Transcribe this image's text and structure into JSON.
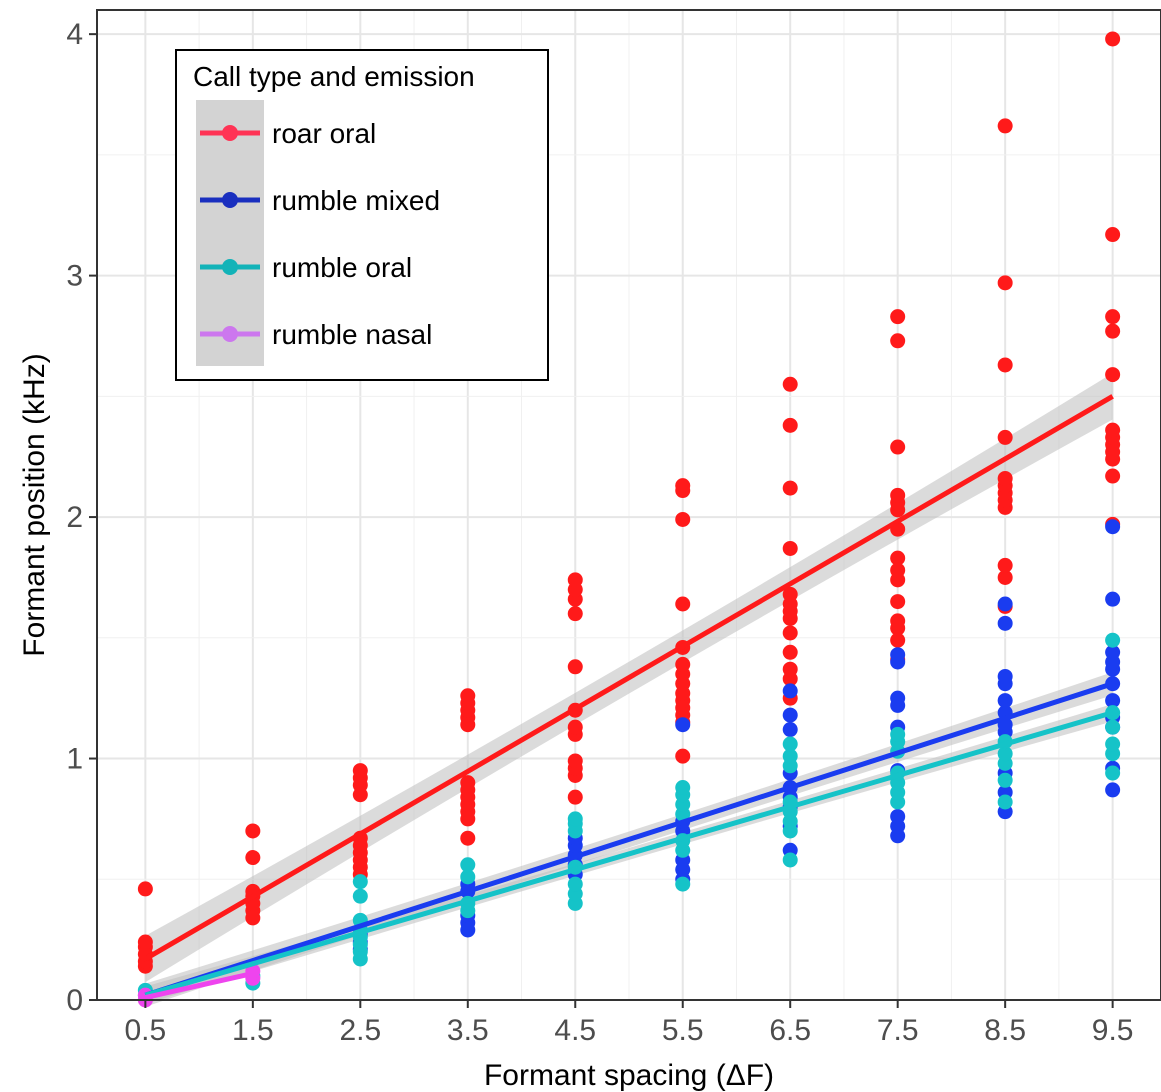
{
  "chart_data": {
    "type": "scatter",
    "title": "",
    "xlabel": "Formant spacing (ΔF)",
    "ylabel": "Formant position (kHz)",
    "xlim": [
      0.05,
      9.95
    ],
    "ylim": [
      0,
      4.1
    ],
    "x_ticks": [
      "0.5",
      "1.5",
      "2.5",
      "3.5",
      "4.5",
      "5.5",
      "6.5",
      "7.5",
      "8.5",
      "9.5"
    ],
    "y_ticks": [
      "0",
      "1",
      "2",
      "3",
      "4"
    ],
    "grid": true,
    "legend": {
      "title": "Call type and emission",
      "position": "top-left"
    },
    "series": [
      {
        "name": "roar oral",
        "color": "#ff1a1a",
        "legend_color": "#ff3355",
        "points": [
          [
            0.5,
            0.14
          ],
          [
            0.5,
            0.16
          ],
          [
            0.5,
            0.19
          ],
          [
            0.5,
            0.22
          ],
          [
            0.5,
            0.24
          ],
          [
            0.5,
            0.46
          ],
          [
            1.5,
            0.34
          ],
          [
            1.5,
            0.37
          ],
          [
            1.5,
            0.4
          ],
          [
            1.5,
            0.43
          ],
          [
            1.5,
            0.45
          ],
          [
            1.5,
            0.59
          ],
          [
            1.5,
            0.7
          ],
          [
            2.5,
            0.52
          ],
          [
            2.5,
            0.55
          ],
          [
            2.5,
            0.58
          ],
          [
            2.5,
            0.61
          ],
          [
            2.5,
            0.64
          ],
          [
            2.5,
            0.67
          ],
          [
            2.5,
            0.85
          ],
          [
            2.5,
            0.89
          ],
          [
            2.5,
            0.92
          ],
          [
            2.5,
            0.95
          ],
          [
            3.5,
            0.67
          ],
          [
            3.5,
            0.75
          ],
          [
            3.5,
            0.78
          ],
          [
            3.5,
            0.81
          ],
          [
            3.5,
            0.84
          ],
          [
            3.5,
            0.87
          ],
          [
            3.5,
            0.9
          ],
          [
            3.5,
            1.14
          ],
          [
            3.5,
            1.17
          ],
          [
            3.5,
            1.2
          ],
          [
            3.5,
            1.23
          ],
          [
            3.5,
            1.26
          ],
          [
            4.5,
            0.84
          ],
          [
            4.5,
            0.93
          ],
          [
            4.5,
            0.96
          ],
          [
            4.5,
            0.99
          ],
          [
            4.5,
            1.1
          ],
          [
            4.5,
            1.13
          ],
          [
            4.5,
            1.2
          ],
          [
            4.5,
            1.38
          ],
          [
            4.5,
            1.6
          ],
          [
            4.5,
            1.66
          ],
          [
            4.5,
            1.7
          ],
          [
            4.5,
            1.74
          ],
          [
            5.5,
            1.01
          ],
          [
            5.5,
            1.15
          ],
          [
            5.5,
            1.18
          ],
          [
            5.5,
            1.21
          ],
          [
            5.5,
            1.24
          ],
          [
            5.5,
            1.27
          ],
          [
            5.5,
            1.31
          ],
          [
            5.5,
            1.35
          ],
          [
            5.5,
            1.39
          ],
          [
            5.5,
            1.46
          ],
          [
            5.5,
            1.64
          ],
          [
            5.5,
            1.99
          ],
          [
            5.5,
            2.11
          ],
          [
            5.5,
            2.13
          ],
          [
            6.5,
            1.25
          ],
          [
            6.5,
            1.33
          ],
          [
            6.5,
            1.37
          ],
          [
            6.5,
            1.44
          ],
          [
            6.5,
            1.52
          ],
          [
            6.5,
            1.58
          ],
          [
            6.5,
            1.61
          ],
          [
            6.5,
            1.64
          ],
          [
            6.5,
            1.68
          ],
          [
            6.5,
            1.87
          ],
          [
            6.5,
            2.12
          ],
          [
            6.5,
            2.38
          ],
          [
            6.5,
            2.55
          ],
          [
            7.5,
            1.41
          ],
          [
            7.5,
            1.49
          ],
          [
            7.5,
            1.54
          ],
          [
            7.5,
            1.57
          ],
          [
            7.5,
            1.65
          ],
          [
            7.5,
            1.74
          ],
          [
            7.5,
            1.78
          ],
          [
            7.5,
            1.83
          ],
          [
            7.5,
            1.95
          ],
          [
            7.5,
            2.03
          ],
          [
            7.5,
            2.06
          ],
          [
            7.5,
            2.09
          ],
          [
            7.5,
            2.29
          ],
          [
            7.5,
            2.73
          ],
          [
            7.5,
            2.83
          ],
          [
            8.5,
            1.63
          ],
          [
            8.5,
            1.75
          ],
          [
            8.5,
            1.8
          ],
          [
            8.5,
            2.04
          ],
          [
            8.5,
            2.07
          ],
          [
            8.5,
            2.1
          ],
          [
            8.5,
            2.13
          ],
          [
            8.5,
            2.16
          ],
          [
            8.5,
            2.33
          ],
          [
            8.5,
            2.63
          ],
          [
            8.5,
            2.97
          ],
          [
            8.5,
            3.62
          ],
          [
            9.5,
            1.97
          ],
          [
            9.5,
            2.17
          ],
          [
            9.5,
            2.24
          ],
          [
            9.5,
            2.27
          ],
          [
            9.5,
            2.3
          ],
          [
            9.5,
            2.33
          ],
          [
            9.5,
            2.36
          ],
          [
            9.5,
            2.59
          ],
          [
            9.5,
            2.77
          ],
          [
            9.5,
            2.83
          ],
          [
            9.5,
            3.17
          ],
          [
            9.5,
            3.98
          ]
        ],
        "fit": {
          "x0": 0.5,
          "y0": 0.17,
          "x1": 9.5,
          "y1": 2.5,
          "ci": 0.08
        }
      },
      {
        "name": "rumble mixed",
        "color": "#1a3cf0",
        "legend_color": "#1a2fbf",
        "points": [
          [
            2.5,
            0.21
          ],
          [
            2.5,
            0.24
          ],
          [
            2.5,
            0.27
          ],
          [
            3.5,
            0.29
          ],
          [
            3.5,
            0.32
          ],
          [
            3.5,
            0.35
          ],
          [
            3.5,
            0.45
          ],
          [
            3.5,
            0.48
          ],
          [
            4.5,
            0.52
          ],
          [
            4.5,
            0.56
          ],
          [
            4.5,
            0.6
          ],
          [
            4.5,
            0.64
          ],
          [
            4.5,
            0.67
          ],
          [
            5.5,
            0.5
          ],
          [
            5.5,
            0.54
          ],
          [
            5.5,
            0.58
          ],
          [
            5.5,
            0.7
          ],
          [
            5.5,
            0.74
          ],
          [
            5.5,
            1.14
          ],
          [
            6.5,
            0.62
          ],
          [
            6.5,
            0.72
          ],
          [
            6.5,
            0.8
          ],
          [
            6.5,
            0.84
          ],
          [
            6.5,
            0.88
          ],
          [
            6.5,
            0.94
          ],
          [
            6.5,
            1.12
          ],
          [
            6.5,
            1.18
          ],
          [
            6.5,
            1.28
          ],
          [
            7.5,
            0.68
          ],
          [
            7.5,
            0.72
          ],
          [
            7.5,
            0.76
          ],
          [
            7.5,
            0.95
          ],
          [
            7.5,
            1.13
          ],
          [
            7.5,
            1.22
          ],
          [
            7.5,
            1.25
          ],
          [
            7.5,
            1.4
          ],
          [
            7.5,
            1.43
          ],
          [
            8.5,
            0.78
          ],
          [
            8.5,
            0.86
          ],
          [
            8.5,
            0.94
          ],
          [
            8.5,
            1.11
          ],
          [
            8.5,
            1.14
          ],
          [
            8.5,
            1.19
          ],
          [
            8.5,
            1.24
          ],
          [
            8.5,
            1.31
          ],
          [
            8.5,
            1.34
          ],
          [
            8.5,
            1.56
          ],
          [
            8.5,
            1.64
          ],
          [
            9.5,
            0.87
          ],
          [
            9.5,
            0.96
          ],
          [
            9.5,
            1.13
          ],
          [
            9.5,
            1.17
          ],
          [
            9.5,
            1.24
          ],
          [
            9.5,
            1.31
          ],
          [
            9.5,
            1.37
          ],
          [
            9.5,
            1.4
          ],
          [
            9.5,
            1.44
          ],
          [
            9.5,
            1.66
          ],
          [
            9.5,
            1.96
          ]
        ],
        "fit": {
          "x0": 0.5,
          "y0": 0.02,
          "x1": 9.5,
          "y1": 1.31,
          "ci": 0.04
        }
      },
      {
        "name": "rumble oral",
        "color": "#15c3c8",
        "legend_color": "#12b3b8",
        "points": [
          [
            0.5,
            0.02
          ],
          [
            0.5,
            0.04
          ],
          [
            1.5,
            0.07
          ],
          [
            1.5,
            0.1
          ],
          [
            2.5,
            0.17
          ],
          [
            2.5,
            0.2
          ],
          [
            2.5,
            0.23
          ],
          [
            2.5,
            0.26
          ],
          [
            2.5,
            0.29
          ],
          [
            2.5,
            0.33
          ],
          [
            2.5,
            0.43
          ],
          [
            2.5,
            0.49
          ],
          [
            3.5,
            0.37
          ],
          [
            3.5,
            0.4
          ],
          [
            3.5,
            0.51
          ],
          [
            3.5,
            0.56
          ],
          [
            4.5,
            0.4
          ],
          [
            4.5,
            0.44
          ],
          [
            4.5,
            0.48
          ],
          [
            4.5,
            0.55
          ],
          [
            4.5,
            0.7
          ],
          [
            4.5,
            0.73
          ],
          [
            4.5,
            0.75
          ],
          [
            5.5,
            0.48
          ],
          [
            5.5,
            0.62
          ],
          [
            5.5,
            0.66
          ],
          [
            5.5,
            0.77
          ],
          [
            5.5,
            0.81
          ],
          [
            5.5,
            0.85
          ],
          [
            5.5,
            0.88
          ],
          [
            6.5,
            0.58
          ],
          [
            6.5,
            0.7
          ],
          [
            6.5,
            0.74
          ],
          [
            6.5,
            0.78
          ],
          [
            6.5,
            0.82
          ],
          [
            6.5,
            0.97
          ],
          [
            6.5,
            1.01
          ],
          [
            6.5,
            1.06
          ],
          [
            7.5,
            0.82
          ],
          [
            7.5,
            0.86
          ],
          [
            7.5,
            0.9
          ],
          [
            7.5,
            0.94
          ],
          [
            7.5,
            1.03
          ],
          [
            7.5,
            1.07
          ],
          [
            7.5,
            1.1
          ],
          [
            8.5,
            0.82
          ],
          [
            8.5,
            0.91
          ],
          [
            8.5,
            0.98
          ],
          [
            8.5,
            1.02
          ],
          [
            8.5,
            1.07
          ],
          [
            9.5,
            0.94
          ],
          [
            9.5,
            1.02
          ],
          [
            9.5,
            1.06
          ],
          [
            9.5,
            1.13
          ],
          [
            9.5,
            1.19
          ],
          [
            9.5,
            1.49
          ]
        ],
        "fit": {
          "x0": 0.5,
          "y0": 0.02,
          "x1": 9.5,
          "y1": 1.19,
          "ci": 0.03
        }
      },
      {
        "name": "rumble nasal",
        "color": "#ee44ee",
        "legend_color": "#cc77ee",
        "points": [
          [
            0.5,
            0.0
          ],
          [
            0.5,
            0.02
          ],
          [
            1.5,
            0.09
          ],
          [
            1.5,
            0.12
          ]
        ],
        "fit": {
          "x0": 0.5,
          "y0": 0.01,
          "x1": 1.5,
          "y1": 0.11,
          "ci": 0.0
        }
      }
    ]
  }
}
